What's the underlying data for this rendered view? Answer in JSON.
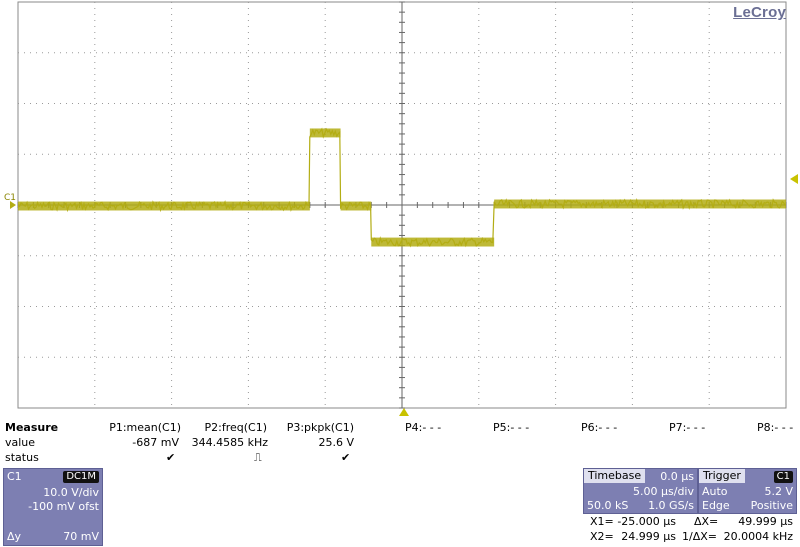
{
  "brand": "LeCroy",
  "channel_marker": "C1",
  "colors": {
    "trace": "#b3ad14",
    "grid": "#8a8a8a",
    "panel": "#7d7fb2",
    "accent": "#c8c200"
  },
  "trace": {
    "unit_per_div": 10.0,
    "segments": [
      {
        "from_div": 0.0,
        "to_div": 3.8,
        "level_V": -0.2
      },
      {
        "from_div": 3.8,
        "to_div": 4.2,
        "level_V": 14.2
      },
      {
        "from_div": 4.2,
        "to_div": 4.6,
        "level_V": -0.2
      },
      {
        "from_div": 4.6,
        "to_div": 6.2,
        "level_V": -7.3
      },
      {
        "from_div": 6.2,
        "to_div": 10.0,
        "level_V": 0.2
      }
    ],
    "noise_V": 0.8
  },
  "measure": {
    "title": "Measure",
    "row_labels": [
      "value",
      "status"
    ],
    "params": [
      {
        "name": "P1:mean(C1)",
        "value": "-687 mV",
        "status": "✔"
      },
      {
        "name": "P2:freq(C1)",
        "value": "344.4585 kHz",
        "status": "⎍"
      },
      {
        "name": "P3:pkpk(C1)",
        "value": "25.6 V",
        "status": "✔"
      },
      {
        "name": "P4:- - -"
      },
      {
        "name": "P5:- - -"
      },
      {
        "name": "P6:- - -"
      },
      {
        "name": "P7:- - -"
      },
      {
        "name": "P8:- - -"
      }
    ]
  },
  "channel": {
    "name": "C1",
    "coupling": "DC1M",
    "vdiv": "10.0 V/div",
    "offset": "-100 mV ofst",
    "dy_label": "Δy",
    "dy_value": "70 mV"
  },
  "timebase": {
    "title": "Timebase",
    "delay": "0.0 µs",
    "tdiv": "5.00 µs/div",
    "samples": "50.0 kS",
    "rate": "1.0 GS/s"
  },
  "trigger": {
    "title": "Trigger",
    "source": "C1",
    "mode": "Auto",
    "level": "5.2 V",
    "type": "Edge",
    "slope": "Positive"
  },
  "cursors": {
    "x1_label": "X1=",
    "x1": "-25.000 µs",
    "dx_label": "ΔX=",
    "dx": "49.999 µs",
    "x2_label": "X2=",
    "x2": "24.999 µs",
    "inv_label": "1/ΔX=",
    "inv": "20.0004 kHz"
  }
}
